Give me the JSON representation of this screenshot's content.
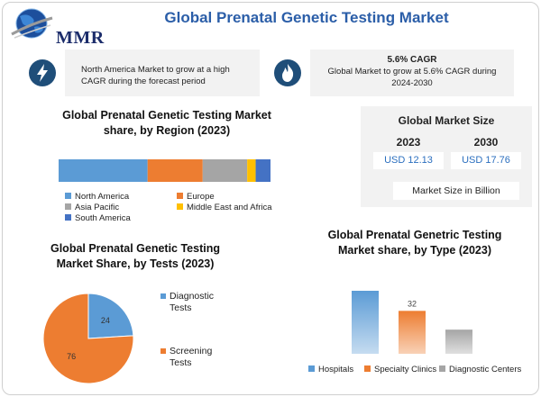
{
  "header": {
    "logo_text": "MMR",
    "title": "Global Prenatal Genetic Testing Market"
  },
  "info_left": {
    "icon": "lightning-icon",
    "text": "North America Market to grow at a high CAGR during the forecast period"
  },
  "info_right": {
    "icon": "flame-icon",
    "headline": "5.6% CAGR",
    "text": "Global Market to grow at 5.6% CAGR during 2024-2030"
  },
  "market_size": {
    "title": "Global Market Size",
    "year_1": "2023",
    "year_2": "2030",
    "value_1": "USD 12.13",
    "value_2": "USD 17.76",
    "unit": "Market Size in Billion"
  },
  "colors": {
    "blue": "#5b9bd5",
    "orange": "#ed7d31",
    "gray": "#a5a5a5",
    "yellow": "#ffc000",
    "dark_blue": "#4472c4",
    "brand": "#2b5ea8"
  },
  "chart_data": [
    {
      "type": "bar",
      "orientation": "horizontal-stacked",
      "title": "Global Prenatal Genetic Testing Market share, by Region (2023)",
      "categories": [
        "2023"
      ],
      "series": [
        {
          "name": "North America",
          "values": [
            42
          ],
          "color": "#5b9bd5"
        },
        {
          "name": "Europe",
          "values": [
            26
          ],
          "color": "#ed7d31"
        },
        {
          "name": "Asia Pacific",
          "values": [
            21
          ],
          "color": "#a5a5a5"
        },
        {
          "name": "Middle East and Africa",
          "values": [
            4
          ],
          "color": "#ffc000"
        },
        {
          "name": "South America",
          "values": [
            7
          ],
          "color": "#4472c4"
        }
      ],
      "legend_placement": "bottom"
    },
    {
      "type": "pie",
      "title": "Global Prenatal Genetic Testing Market Share, by Tests (2023)",
      "labels": [
        "Diagnostic Tests",
        "Screening Tests"
      ],
      "values": [
        24,
        76
      ],
      "colors": [
        "#5b9bd5",
        "#ed7d31"
      ],
      "legend_placement": "right"
    },
    {
      "type": "bar",
      "title": "Global Prenatal Genetric Testing Market share, by Type (2023)",
      "categories": [
        "Hospitals",
        "Specialty Clinics",
        "Diagnostic Centers"
      ],
      "values": [
        47,
        32,
        18
      ],
      "data_labels": [
        "",
        "32",
        ""
      ],
      "colors": [
        "#5b9bd5",
        "#ed7d31",
        "#a5a5a5"
      ],
      "legend_placement": "bottom"
    }
  ]
}
